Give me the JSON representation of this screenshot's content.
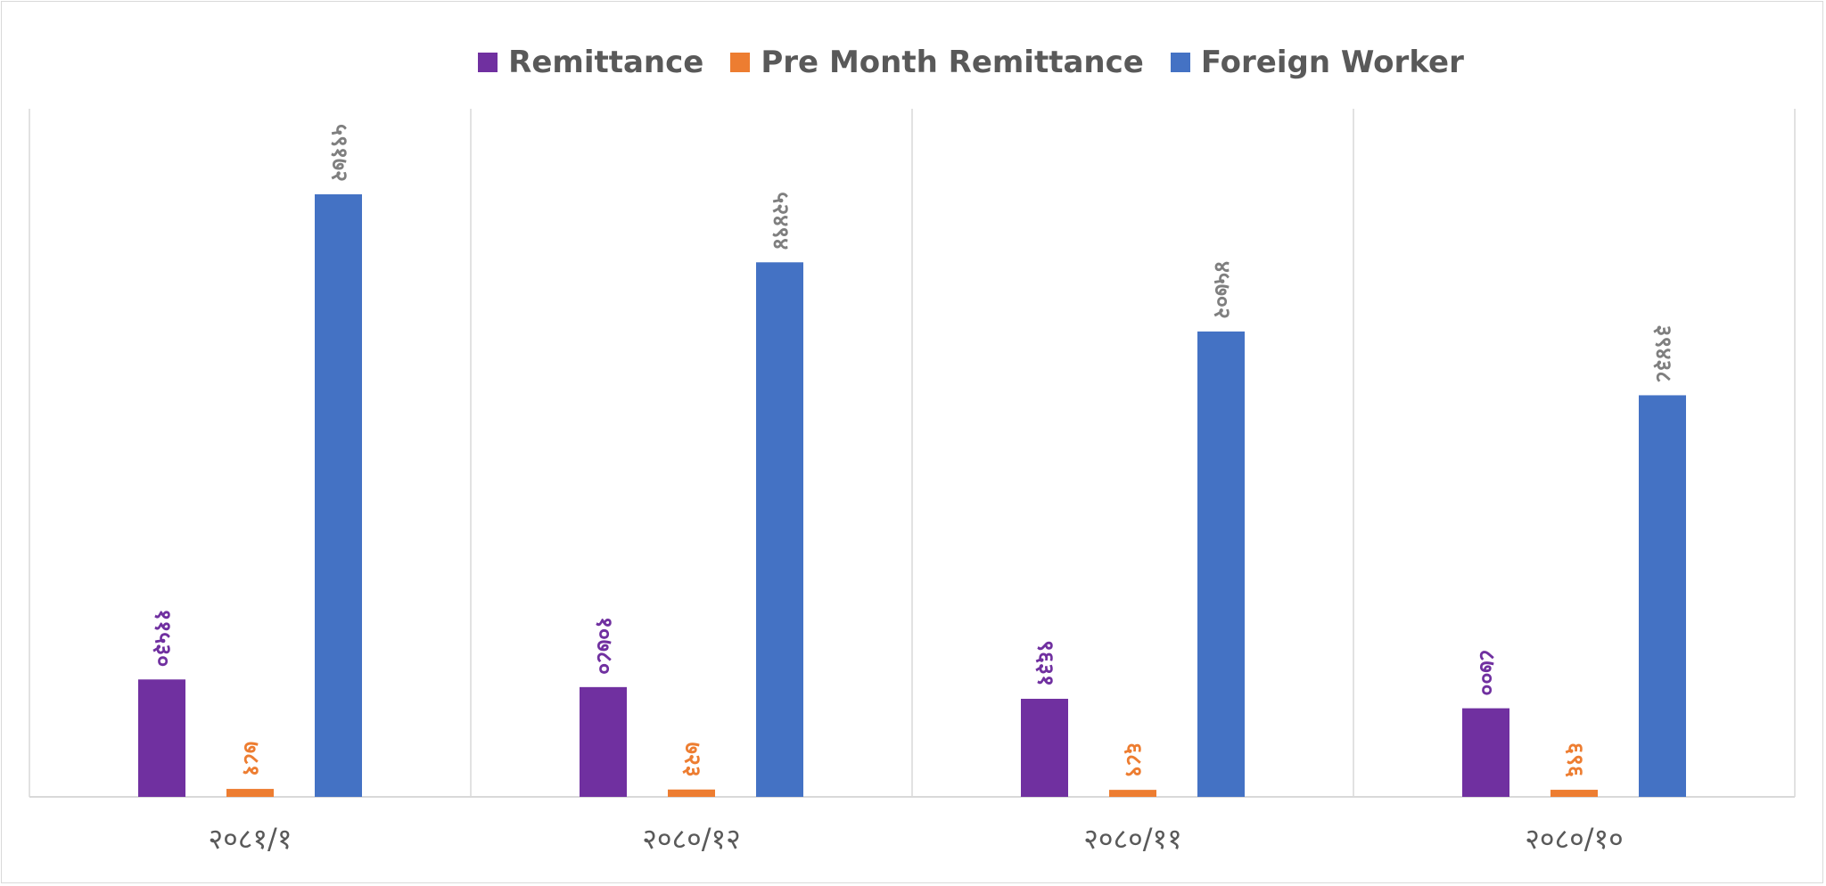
{
  "chart_data": {
    "type": "bar",
    "categories": [
      "२०८१/१",
      "२०८०/१२",
      "२०८०/११",
      "२०८०/१०"
    ],
    "series": [
      {
        "name": "Remittance",
        "color": "#7030a0",
        "values": [
          11530,
          10780,
          9631,
          8700
        ],
        "labels": [
          "११५३०",
          "१०७८०",
          "९६३१",
          "८७००"
        ]
      },
      {
        "name": "Pre Month Remittance",
        "color": "#ed7d31",
        "values": [
          781,
          723,
          689,
          696
        ],
        "labels": [
          "७८१",
          "७२३",
          "६८९",
          "६९६"
        ]
      },
      {
        "name": "Foreign Worker",
        "color": "#4472c4",
        "values": [
          59172,
          52494,
          45702,
          39438
        ],
        "labels": [
          "५९१७२",
          "५२४९४",
          "४५७०२",
          "३९४३८"
        ]
      }
    ],
    "ylim": [
      0,
      68000
    ],
    "grid": false,
    "legend": "top-center"
  }
}
